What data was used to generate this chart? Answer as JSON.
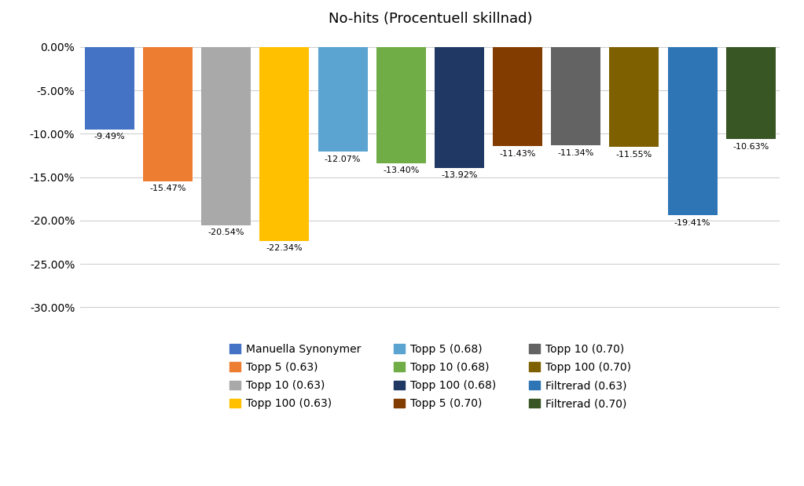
{
  "title": "No-hits (Procentuell skillnad)",
  "categories": [
    "Manuella Synonymer",
    "Topp 5 (0.63)",
    "Topp 10 (0.63)",
    "Topp 100 (0.63)",
    "Topp 5 (0.68)",
    "Topp 10 (0.68)",
    "Topp 100 (0.68)",
    "Topp 5 (0.70)",
    "Topp 10 (0.70)",
    "Topp 100 (0.70)",
    "Filtrerad (0.63)",
    "Filtrerad (0.70)"
  ],
  "values": [
    -9.49,
    -15.47,
    -20.54,
    -22.34,
    -12.07,
    -13.4,
    -13.92,
    -11.43,
    -11.34,
    -11.55,
    -19.41,
    -10.63
  ],
  "colors": [
    "#4472C4",
    "#ED7D31",
    "#A9A9A9",
    "#FFC000",
    "#5BA3D0",
    "#70AD47",
    "#1F3864",
    "#833C00",
    "#636363",
    "#7F6000",
    "#2E75B6",
    "#375623"
  ],
  "ylim": [
    -31,
    1.5
  ],
  "yticks": [
    0,
    -5,
    -10,
    -15,
    -20,
    -25,
    -30
  ],
  "background_color": "#FFFFFF",
  "legend_labels": [
    "Manuella Synonymer",
    "Topp 5 (0.63)",
    "Topp 10 (0.63)",
    "Topp 100 (0.63)",
    "Topp 5 (0.68)",
    "Topp 10 (0.68)",
    "Topp 100 (0.68)",
    "Topp 5 (0.70)",
    "Topp 10 (0.70)",
    "Topp 100 (0.70)",
    "Filtrerad (0.63)",
    "Filtrerad (0.70)"
  ],
  "legend_colors": [
    "#4472C4",
    "#ED7D31",
    "#A9A9A9",
    "#FFC000",
    "#5BA3D0",
    "#70AD47",
    "#1F3864",
    "#833C00",
    "#636363",
    "#7F6000",
    "#2E75B6",
    "#375623"
  ]
}
